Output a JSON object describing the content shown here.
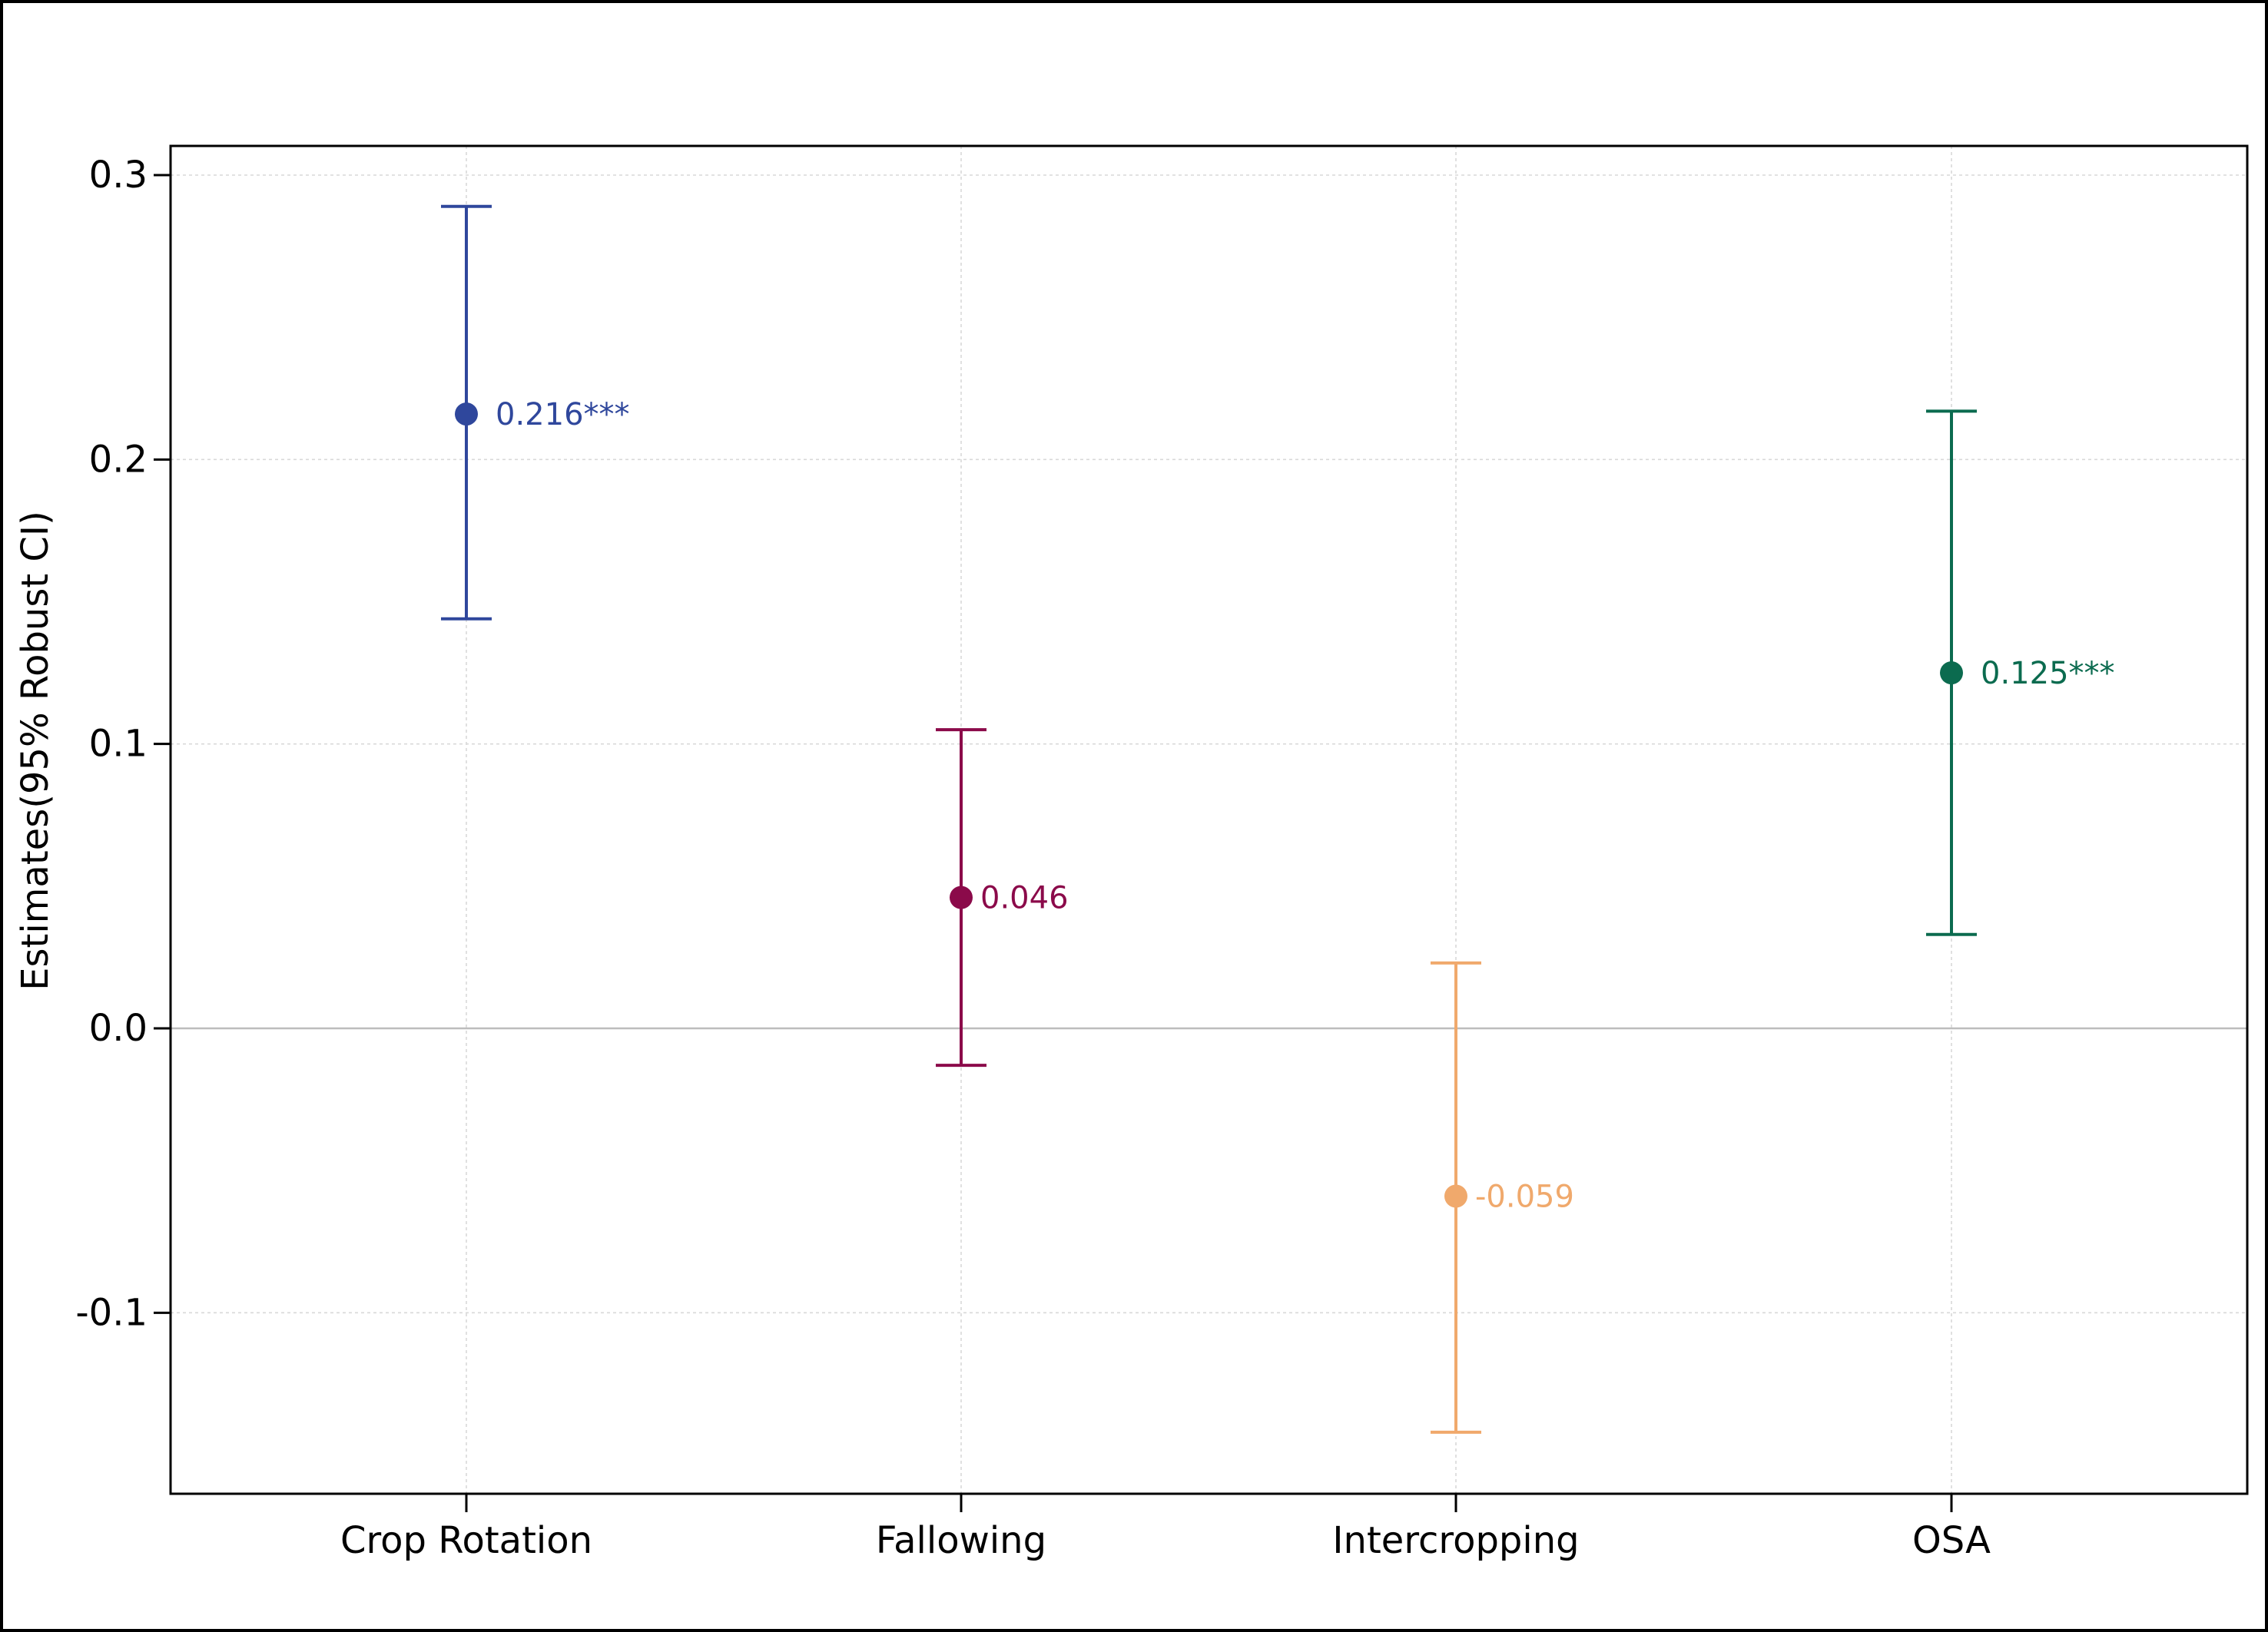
{
  "chart_data": {
    "type": "scatter",
    "title": "",
    "xlabel": "",
    "ylabel": "Estimates(95% Robust CI)",
    "ylim": [
      -0.155,
      0.31
    ],
    "grid": true,
    "yticks": [
      {
        "value": -0.1,
        "label": "-0.1"
      },
      {
        "value": 0.0,
        "label": "0.0"
      },
      {
        "value": 0.1,
        "label": "0.1"
      },
      {
        "value": 0.2,
        "label": "0.2"
      },
      {
        "value": 0.3,
        "label": "0.3"
      }
    ],
    "categories": [
      "Crop Rotation",
      "Fallowing",
      "Intercropping",
      "OSA"
    ],
    "points": [
      {
        "category": "Crop Rotation",
        "estimate": 0.216,
        "ci_low": 0.144,
        "ci_high": 0.289,
        "label": "0.216***",
        "color": "#2f479c"
      },
      {
        "category": "Fallowing",
        "estimate": 0.046,
        "ci_low": -0.013,
        "ci_high": 0.105,
        "label": "0.046",
        "color": "#8b0a4a"
      },
      {
        "category": "Intercropping",
        "estimate": -0.059,
        "ci_low": -0.142,
        "ci_high": 0.023,
        "label": "-0.059",
        "color": "#f0a96c"
      },
      {
        "category": "OSA",
        "estimate": 0.125,
        "ci_low": 0.033,
        "ci_high": 0.217,
        "label": "0.125***",
        "color": "#0b6b4f"
      }
    ]
  }
}
